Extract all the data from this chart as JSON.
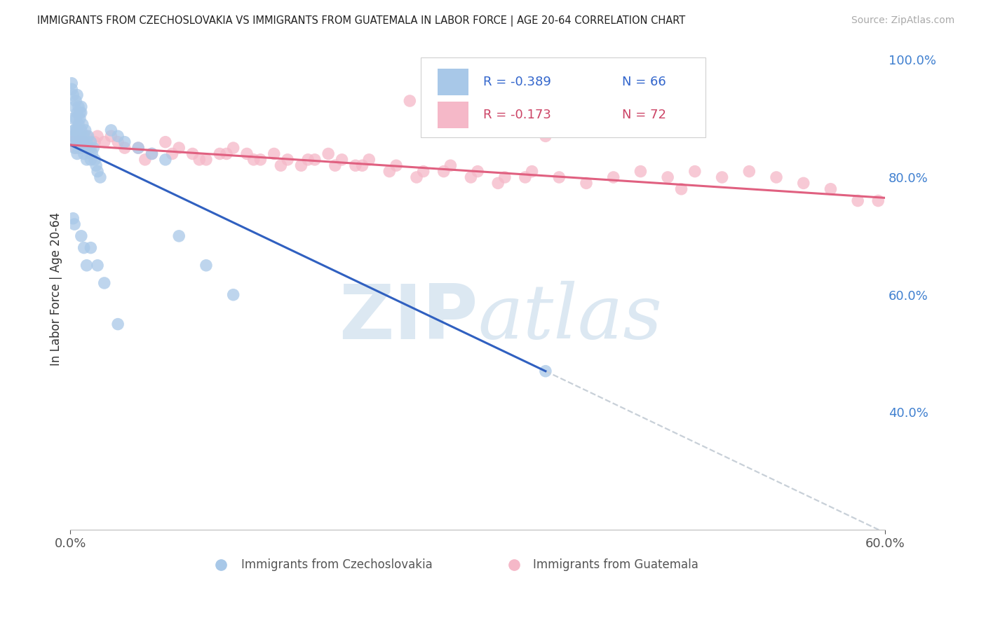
{
  "title": "IMMIGRANTS FROM CZECHOSLOVAKIA VS IMMIGRANTS FROM GUATEMALA IN LABOR FORCE | AGE 20-64 CORRELATION CHART",
  "source": "Source: ZipAtlas.com",
  "ylabel": "In Labor Force | Age 20-64",
  "legend_r1": "-0.389",
  "legend_n1": "66",
  "legend_r2": "-0.173",
  "legend_n2": "72",
  "color_blue": "#a8c8e8",
  "color_pink": "#f5b8c8",
  "color_line_blue": "#3060c0",
  "color_line_pink": "#e06080",
  "color_dashed": "#c8d0d8",
  "background": "#ffffff",
  "grid_color": "#c8d4e4",
  "xlim": [
    0.0,
    0.6
  ],
  "ylim": [
    0.2,
    1.02
  ],
  "watermark_color": "#dce8f2",
  "right_yticks": [
    0.4,
    0.6,
    0.8,
    1.0
  ],
  "right_yticklabels": [
    "40.0%",
    "60.0%",
    "80.0%",
    "100.0%"
  ]
}
